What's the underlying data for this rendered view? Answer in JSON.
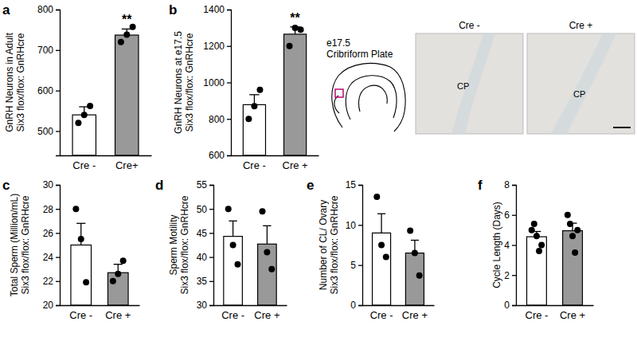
{
  "chart_data": [
    {
      "type": "bar",
      "title": "a",
      "ylabel": [
        "GnRH Neurons in Adult",
        "Six3 flox/flox: GnRHcre"
      ],
      "categories": [
        "Cre -",
        "Cre+"
      ],
      "values": [
        540,
        737
      ],
      "errors": [
        20,
        15
      ],
      "points": [
        [
          520,
          540,
          562
        ],
        [
          720,
          738,
          757
        ]
      ],
      "colors": [
        "#ffffff",
        "#999999"
      ],
      "ylim": [
        440,
        800
      ],
      "yticks": [
        500,
        600,
        700,
        800
      ],
      "annotations": [
        {
          "text": "**",
          "x": "Cre+"
        }
      ]
    },
    {
      "type": "bar",
      "title": "b",
      "ylabel": [
        "GnRH Neurons at e17.5",
        "Six3 flox/flox: GnRHcre"
      ],
      "categories": [
        "Cre -",
        "Cre +"
      ],
      "values": [
        878,
        1265
      ],
      "errors": [
        55,
        40
      ],
      "points": [
        [
          800,
          870,
          960
        ],
        [
          1200,
          1300,
          1290
        ]
      ],
      "colors": [
        "#ffffff",
        "#999999"
      ],
      "ylim": [
        600,
        1400
      ],
      "yticks": [
        600,
        800,
        1000,
        1200,
        1400
      ],
      "annotations": [
        {
          "text": "**",
          "x": "Cre +"
        }
      ]
    },
    {
      "type": "bar",
      "title": "c",
      "ylabel": [
        "Total Sperm (Million/mL)",
        "Six3 flox/flox: GnRHcre"
      ],
      "categories": [
        "Cre -",
        "Cre +"
      ],
      "values": [
        25,
        22.7
      ],
      "errors": [
        1.8,
        0.7
      ],
      "points": [
        [
          28,
          25.5,
          21.9
        ],
        [
          22.0,
          22.6,
          23.7
        ]
      ],
      "colors": [
        "#ffffff",
        "#999999"
      ],
      "ylim": [
        20,
        30
      ],
      "yticks": [
        20,
        22,
        24,
        26,
        28,
        30
      ]
    },
    {
      "type": "bar",
      "title": "d",
      "ylabel": [
        "Sperm Motility",
        "Six3 flox/flox: GnRHcre"
      ],
      "categories": [
        "Cre -",
        "Cre +"
      ],
      "values": [
        44.3,
        42.7
      ],
      "errors": [
        3.2,
        3.8
      ],
      "points": [
        [
          50,
          42.5,
          38.5
        ],
        [
          49.5,
          41,
          37.5
        ]
      ],
      "colors": [
        "#ffffff",
        "#999999"
      ],
      "ylim": [
        30,
        55
      ],
      "yticks": [
        30,
        35,
        40,
        45,
        50,
        55
      ]
    },
    {
      "type": "bar",
      "title": "e",
      "ylabel": [
        "Number of CL/ Ovary",
        "Six3 flox/flox: GnRHcre"
      ],
      "categories": [
        "Cre -",
        "Cre +"
      ],
      "values": [
        9,
        6.5
      ],
      "errors": [
        2.4,
        1.6
      ],
      "points": [
        [
          13.5,
          7.5,
          6
        ],
        [
          9.3,
          6.5,
          3.7
        ]
      ],
      "colors": [
        "#ffffff",
        "#999999"
      ],
      "ylim": [
        0,
        15
      ],
      "yticks": [
        0,
        5,
        10,
        15
      ]
    },
    {
      "type": "bar",
      "title": "f",
      "ylabel": [
        "Cycle Length (Days)"
      ],
      "categories": [
        "Cre -",
        "Cre +"
      ],
      "values": [
        4.55,
        4.95
      ],
      "errors": [
        0.35,
        0.5
      ],
      "points": [
        [
          5.0,
          5.4,
          4.6,
          3.6,
          4.0
        ],
        [
          6.0,
          5.4,
          4.6,
          3.5,
          5.0
        ]
      ],
      "colors": [
        "#ffffff",
        "#999999"
      ],
      "ylim": [
        0,
        8
      ],
      "yticks": [
        0,
        2,
        4,
        6,
        8
      ]
    }
  ],
  "inset": {
    "schematic": [
      "e17.5",
      "Cribriform Plate"
    ],
    "images": [
      {
        "label": "Cre -",
        "region": "CP"
      },
      {
        "label": "Cre +",
        "region": "CP"
      }
    ]
  }
}
